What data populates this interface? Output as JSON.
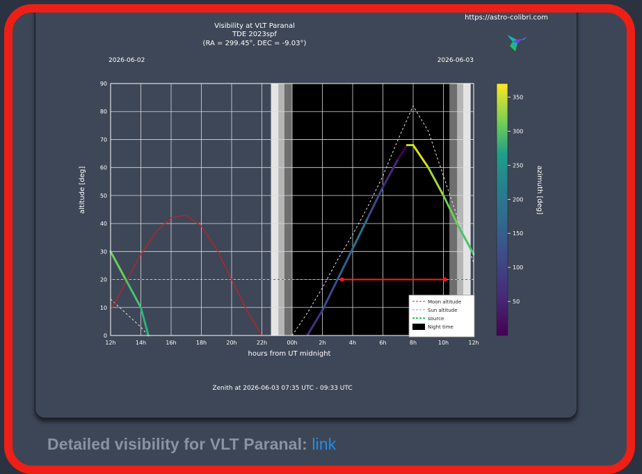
{
  "footer": {
    "label": "Detailed visibility for VLT Paranal:",
    "link": "link"
  },
  "colors": {
    "frame": "#ee1f16",
    "background": "#3d4656",
    "link": "#1e8fe8"
  },
  "chart_data": {
    "type": "line",
    "title_lines": [
      "Visibility at VLT Paranal",
      "TDE 2023spf",
      "(RA = 299.45°, DEC = -9.03°)"
    ],
    "website": "https://astro-colibri.com",
    "date_left": "2026-06-02",
    "date_right": "2026-06-03",
    "xlabel": "hours from UT midnight",
    "ylabel": "altitude [deg]",
    "colorbar_label": "azimuth [deg]",
    "xlim": [
      -12,
      12
    ],
    "ylim": [
      0,
      90
    ],
    "x_tick_labels": [
      "12h",
      "14h",
      "16h",
      "18h",
      "20h",
      "22h",
      "00h",
      "2h",
      "4h",
      "6h",
      "8h",
      "10h",
      "12h"
    ],
    "y_ticks": [
      0,
      10,
      20,
      30,
      40,
      50,
      60,
      70,
      80,
      90
    ],
    "colorbar_ticks": [
      50,
      100,
      150,
      200,
      250,
      300,
      350
    ],
    "twilight_bands": [
      {
        "start": -1.4,
        "end": -0.9,
        "shade": "#e4e4e4"
      },
      {
        "start": -0.9,
        "end": -0.5,
        "shade": "#b5b5b5"
      },
      {
        "start": -0.5,
        "end": 0.0,
        "shade": "#6e6e6e"
      },
      {
        "start": 0.0,
        "end": 10.4,
        "shade": "#000000"
      },
      {
        "start": 10.4,
        "end": 10.9,
        "shade": "#6e6e6e"
      },
      {
        "start": 10.9,
        "end": 11.3,
        "shade": "#b5b5b5"
      },
      {
        "start": 11.3,
        "end": 11.8,
        "shade": "#e4e4e4"
      }
    ],
    "altitude_limit": 20,
    "observable_window": [
      3.3,
      10.1
    ],
    "moon_altitude": {
      "x": [
        -12,
        -11,
        -10,
        -9,
        -8,
        -7,
        -6,
        -5,
        -4,
        -3,
        -2,
        -1.5
      ],
      "y": [
        9,
        19,
        29,
        37,
        42,
        43,
        39,
        31,
        20,
        9,
        0,
        0
      ]
    },
    "source_altitude": {
      "x": [
        -12,
        -11,
        -10,
        -9.5,
        1,
        2,
        3,
        4,
        5,
        6,
        7,
        7.6,
        8,
        9,
        10,
        11,
        12
      ],
      "y": [
        30,
        20,
        10,
        0,
        0,
        9,
        20,
        31,
        42,
        53,
        63,
        68,
        68,
        60,
        50,
        39,
        29
      ]
    },
    "sun_altitude": {
      "x": [
        -12,
        -11,
        -10,
        -9.5,
        0,
        1,
        2,
        3,
        4,
        5,
        6,
        7,
        8,
        9,
        10,
        11,
        12
      ],
      "y": [
        13,
        8,
        3,
        0,
        0,
        8,
        17,
        27,
        36,
        46,
        57,
        70,
        82,
        73,
        57,
        41,
        26
      ]
    },
    "legend": [
      "Moon altitude",
      "Sun altitude",
      "source",
      "Night time"
    ],
    "footer_text": "Zenith at 2026-06-03 07:35 UTC - 09:33 UTC"
  }
}
